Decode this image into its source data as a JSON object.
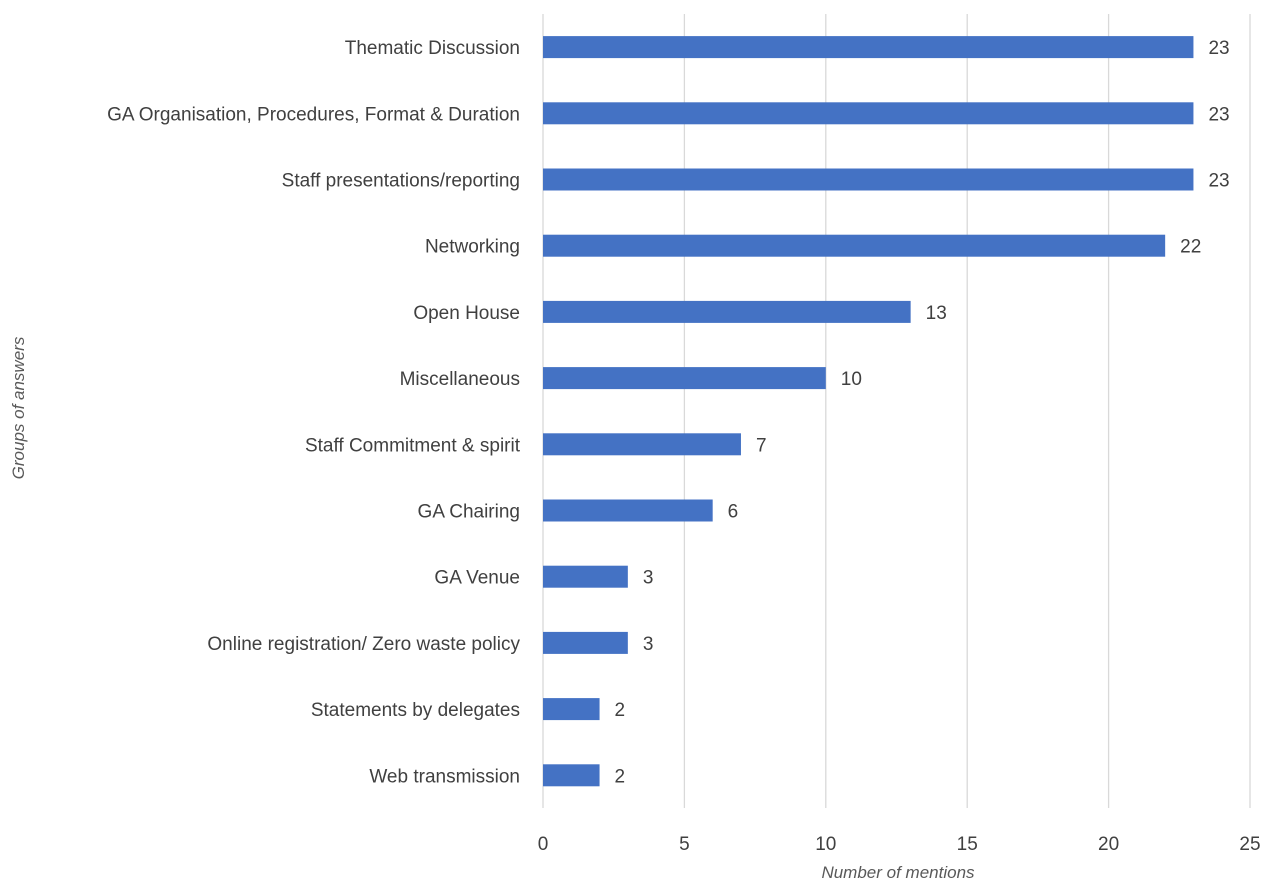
{
  "chart_data": {
    "type": "bar",
    "orientation": "horizontal",
    "title": "",
    "xlabel": "Number of mentions",
    "ylabel": "Groups of answers",
    "categories": [
      "Thematic Discussion",
      "GA Organisation, Procedures, Format & Duration",
      "Staff presentations/reporting",
      "Networking",
      "Open House",
      "Miscellaneous",
      "Staff Commitment & spirit",
      "GA Chairing",
      "GA Venue",
      "Online registration/ Zero waste policy",
      "Statements by delegates",
      "Web transmission"
    ],
    "values": [
      23,
      23,
      23,
      22,
      13,
      10,
      7,
      6,
      3,
      3,
      2,
      2
    ],
    "xlim": [
      0,
      25
    ],
    "xticks": [
      "0",
      "5",
      "10",
      "15",
      "20",
      "25"
    ],
    "grid": "vertical",
    "data_labels": true,
    "bar_color": "#4472c4",
    "legend": "none"
  }
}
